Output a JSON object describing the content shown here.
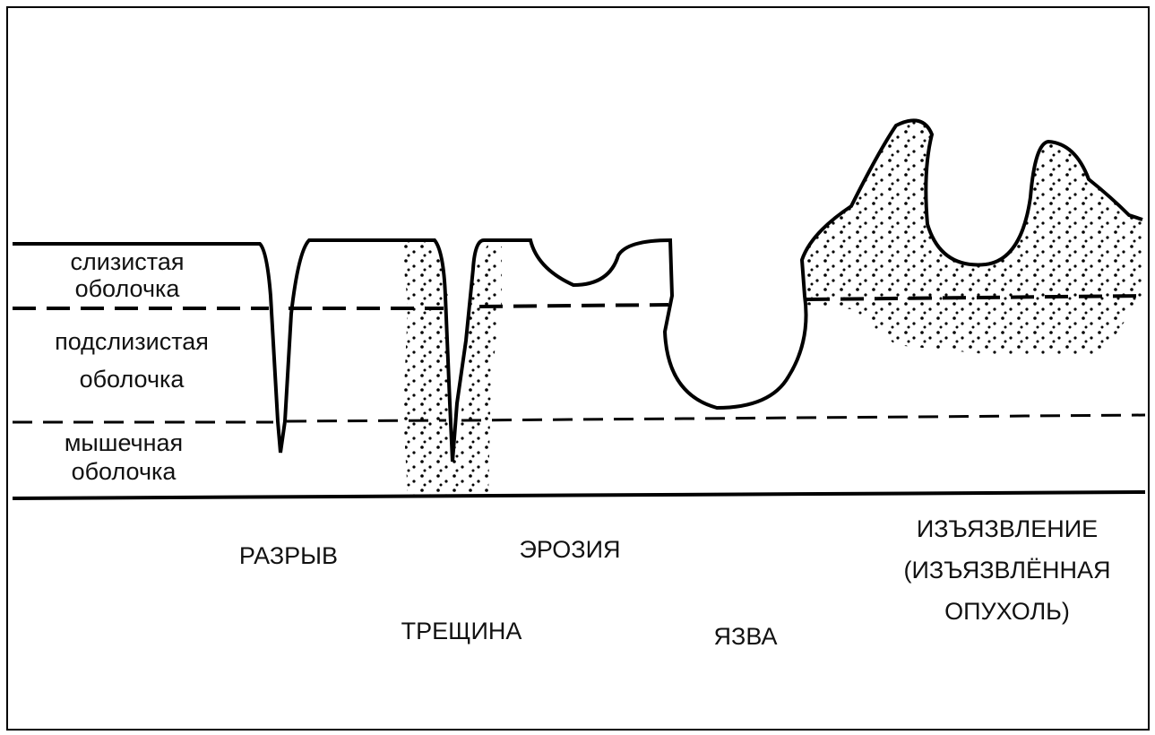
{
  "layers": [
    {
      "lines": [
        "слизистая",
        "оболочка"
      ]
    },
    {
      "lines": [
        "подслизистая",
        "оболочка"
      ]
    },
    {
      "lines": [
        "мышечная",
        "оболочка"
      ]
    }
  ],
  "lesions": [
    {
      "lines": [
        "РАЗРЫВ"
      ]
    },
    {
      "lines": [
        "ТРЕЩИНА"
      ]
    },
    {
      "lines": [
        "ЭРОЗИЯ"
      ]
    },
    {
      "lines": [
        "ЯЗВА"
      ]
    },
    {
      "lines": [
        "ИЗЪЯЗВЛЕНИЕ",
        "(ИЗЪЯЗВЛЁННАЯ",
        "ОПУХОЛЬ)"
      ]
    }
  ]
}
